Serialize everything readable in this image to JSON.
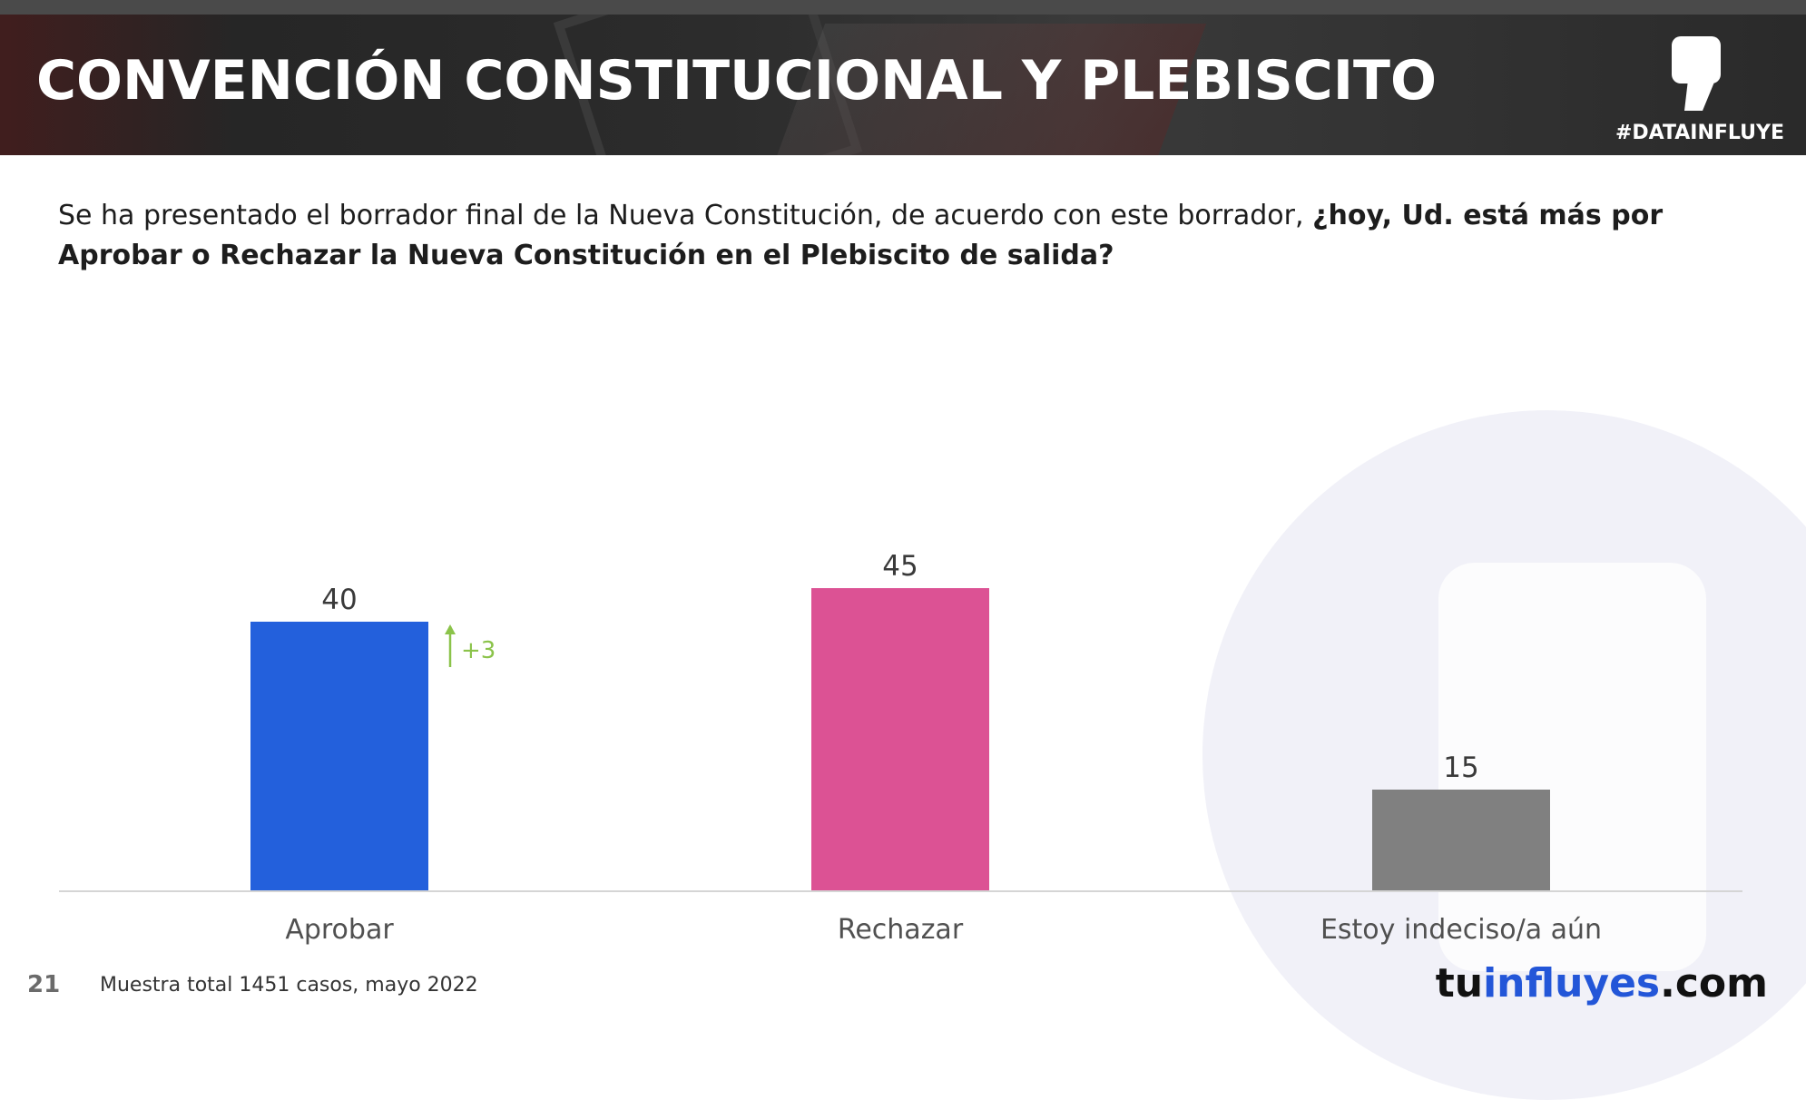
{
  "header": {
    "title": "CONVENCIÓN CONSTITUCIONAL Y PLEBISCITO",
    "hashtag": "#DATAINFLUYE",
    "logo_icon": "comma-logo-icon"
  },
  "question": {
    "plain": "Se ha presentado el borrador final de la Nueva Constitución, de acuerdo con este borrador, ",
    "bold": "¿hoy, Ud. está más por Aprobar o Rechazar la Nueva Constitución en el Plebiscito de salida?"
  },
  "chart_data": {
    "type": "bar",
    "categories": [
      "Aprobar",
      "Rechazar",
      "Estoy indeciso/a aún"
    ],
    "values": [
      40,
      45,
      15
    ],
    "colors": [
      "#2360dc",
      "#dc5294",
      "#808080"
    ],
    "annotations": [
      {
        "category": "Aprobar",
        "text": "+3",
        "direction": "up",
        "color": "#8bc34a"
      }
    ],
    "title": "",
    "xlabel": "",
    "ylabel": "",
    "ylim": [
      0,
      60
    ],
    "grid": false,
    "legend": "none"
  },
  "footer": {
    "page_number": "21",
    "note": "Muestra total 1451 casos, mayo 2022",
    "brand_part1": "tu",
    "brand_part2": "influyes",
    "brand_part3": ".com"
  }
}
